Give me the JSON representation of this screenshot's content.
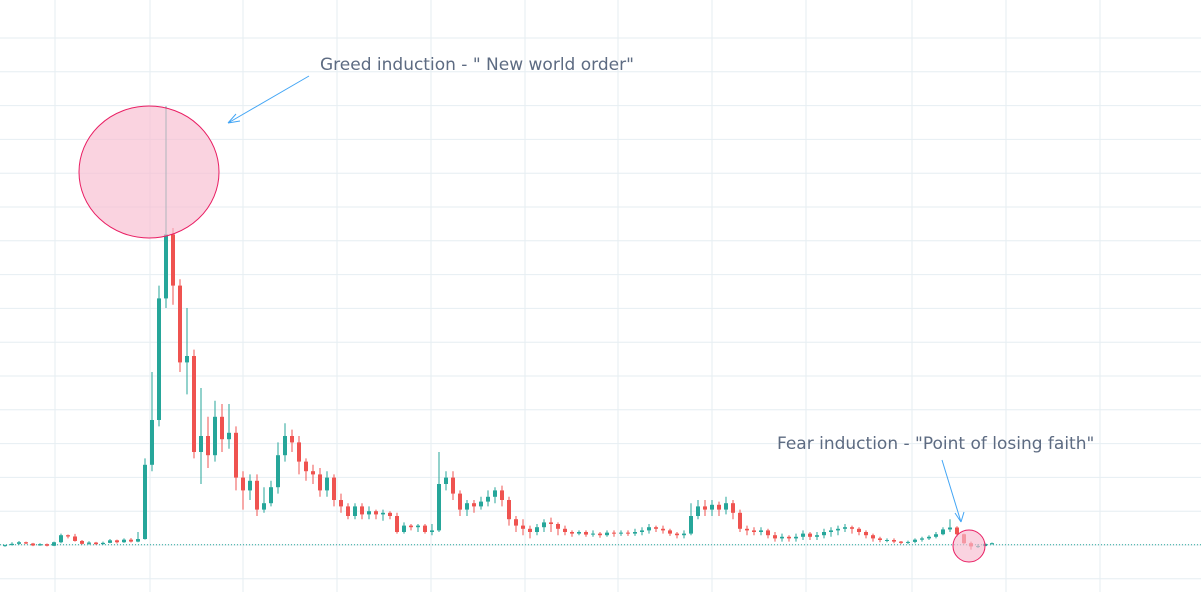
{
  "theme": {
    "up_color": "#26a69a",
    "down_color": "#ef5350",
    "grid_color": "#e6eef2",
    "baseline_color": "#26a69a",
    "annotation_fill": "#f8bbd0",
    "annotation_stroke": "#e91e63",
    "arrow_color": "#42a5f5",
    "text_color": "#5d6b82"
  },
  "annotations": {
    "greed": "Greed induction - \" New world order\"",
    "fear": "Fear induction - \"Point of losing faith\""
  },
  "chart_data": {
    "type": "candlestick",
    "title": "",
    "xlabel": "",
    "ylabel": "",
    "grid": true,
    "ylim": [
      0,
      100
    ],
    "baseline": 1.0,
    "candles": [
      [
        0.6,
        0.9,
        0.4,
        1.0
      ],
      [
        0.9,
        1.3,
        0.8,
        1.8
      ],
      [
        1.3,
        1.8,
        1.0,
        2.2
      ],
      [
        1.8,
        1.4,
        1.2,
        2.0
      ],
      [
        1.4,
        0.8,
        0.6,
        1.6
      ],
      [
        0.8,
        1.2,
        0.7,
        1.5
      ],
      [
        1.2,
        0.7,
        0.5,
        1.4
      ],
      [
        0.7,
        1.8,
        0.6,
        2.0
      ],
      [
        1.8,
        4.0,
        1.5,
        4.5
      ],
      [
        4.0,
        3.6,
        3.0,
        4.2
      ],
      [
        3.6,
        2.2,
        2.0,
        4.4
      ],
      [
        2.2,
        1.3,
        1.1,
        2.5
      ],
      [
        1.3,
        1.7,
        1.0,
        2.1
      ],
      [
        1.7,
        1.2,
        1.0,
        1.9
      ],
      [
        1.2,
        1.6,
        1.1,
        2.0
      ],
      [
        1.6,
        2.4,
        1.5,
        2.8
      ],
      [
        2.4,
        1.8,
        1.4,
        2.6
      ],
      [
        1.8,
        2.6,
        1.6,
        3.0
      ],
      [
        2.6,
        2.0,
        1.7,
        3.1
      ],
      [
        2.0,
        2.8,
        1.8,
        5.0
      ],
      [
        2.8,
        26.0,
        2.6,
        28.0
      ],
      [
        26.0,
        40.0,
        24.0,
        55.0
      ],
      [
        40.0,
        78.0,
        38.0,
        82.0
      ],
      [
        78.0,
        98.0,
        75.0,
        138.0
      ],
      [
        98.0,
        82.0,
        76.0,
        100.0
      ],
      [
        82.0,
        58.0,
        55.0,
        84.0
      ],
      [
        58.0,
        60.0,
        48.0,
        75.0
      ],
      [
        60.0,
        30.0,
        28.0,
        62.0
      ],
      [
        30.0,
        35.0,
        20.0,
        50.0
      ],
      [
        35.0,
        29.0,
        25.0,
        41.0
      ],
      [
        29.0,
        41.0,
        27.0,
        46.0
      ],
      [
        41.0,
        34.0,
        30.0,
        45.0
      ],
      [
        34.0,
        36.0,
        31.0,
        45.0
      ],
      [
        36.0,
        22.0,
        18.0,
        38.0
      ],
      [
        22.0,
        18.0,
        12.0,
        24.0
      ],
      [
        18.0,
        21.0,
        15.0,
        23.0
      ],
      [
        21.0,
        12.0,
        10.0,
        23.0
      ],
      [
        12.0,
        14.0,
        11.0,
        19.0
      ],
      [
        14.0,
        19.0,
        13.0,
        21.0
      ],
      [
        19.0,
        29.0,
        17.0,
        33.0
      ],
      [
        29.0,
        35.0,
        27.0,
        39.0
      ],
      [
        35.0,
        33.0,
        30.0,
        37.0
      ],
      [
        33.0,
        27.0,
        23.0,
        35.0
      ],
      [
        27.0,
        24.0,
        21.0,
        28.0
      ],
      [
        24.0,
        23.0,
        20.0,
        26.0
      ],
      [
        23.0,
        18.0,
        16.0,
        25.0
      ],
      [
        18.0,
        22.0,
        16.0,
        24.0
      ],
      [
        22.0,
        15.0,
        13.0,
        23.0
      ],
      [
        15.0,
        13.0,
        11.0,
        17.0
      ],
      [
        13.0,
        10.0,
        9.0,
        14.0
      ],
      [
        10.0,
        13.0,
        9.0,
        14.0
      ],
      [
        13.0,
        10.5,
        9.0,
        14.0
      ],
      [
        10.5,
        11.5,
        9.0,
        13.0
      ],
      [
        11.5,
        10.5,
        9.0,
        12.0
      ],
      [
        10.5,
        11.0,
        8.5,
        12.0
      ],
      [
        11.0,
        10.0,
        9.0,
        11.5
      ],
      [
        10.0,
        5.0,
        4.5,
        11.0
      ],
      [
        5.0,
        7.0,
        4.5,
        8.0
      ],
      [
        7.0,
        6.5,
        5.5,
        7.5
      ],
      [
        6.5,
        7.0,
        5.0,
        7.5
      ],
      [
        7.0,
        5.0,
        4.5,
        7.5
      ],
      [
        5.0,
        5.5,
        4.0,
        7.5
      ],
      [
        5.5,
        20.0,
        5.0,
        30.0
      ],
      [
        20.0,
        22.0,
        18.0,
        24.0
      ],
      [
        22.0,
        17.0,
        15.0,
        24.0
      ],
      [
        17.0,
        12.0,
        10.0,
        18.0
      ],
      [
        12.0,
        14.0,
        10.0,
        15.0
      ],
      [
        14.0,
        13.0,
        11.0,
        15.0
      ],
      [
        13.0,
        14.5,
        12.0,
        16.0
      ],
      [
        14.5,
        16.0,
        13.0,
        18.0
      ],
      [
        16.0,
        18.0,
        14.0,
        19.0
      ],
      [
        18.0,
        15.0,
        13.0,
        19.5
      ],
      [
        15.0,
        9.0,
        7.0,
        16.0
      ],
      [
        9.0,
        7.0,
        5.0,
        10.0
      ],
      [
        7.0,
        6.0,
        4.0,
        9.0
      ],
      [
        6.0,
        5.0,
        3.0,
        7.0
      ],
      [
        5.0,
        6.5,
        4.0,
        7.5
      ],
      [
        6.5,
        8.0,
        5.0,
        9.0
      ],
      [
        8.0,
        7.5,
        5.0,
        9.5
      ],
      [
        7.5,
        6.0,
        4.0,
        8.0
      ],
      [
        6.0,
        5.0,
        4.0,
        7.0
      ],
      [
        5.0,
        4.5,
        3.5,
        5.5
      ],
      [
        4.5,
        5.0,
        4.0,
        5.5
      ],
      [
        5.0,
        4.2,
        3.5,
        5.5
      ],
      [
        4.2,
        4.5,
        3.5,
        5.5
      ],
      [
        4.5,
        4.0,
        3.2,
        5.0
      ],
      [
        4.0,
        4.8,
        3.5,
        5.5
      ],
      [
        4.8,
        4.5,
        3.5,
        5.5
      ],
      [
        4.5,
        4.8,
        3.8,
        5.5
      ],
      [
        4.8,
        4.5,
        3.8,
        5.5
      ],
      [
        4.5,
        5.0,
        3.8,
        6.0
      ],
      [
        5.0,
        5.5,
        4.0,
        6.5
      ],
      [
        5.5,
        6.5,
        4.5,
        7.5
      ],
      [
        6.5,
        6.0,
        5.0,
        7.0
      ],
      [
        6.0,
        5.5,
        4.5,
        7.0
      ],
      [
        5.5,
        4.5,
        3.8,
        6.0
      ],
      [
        4.5,
        4.0,
        3.0,
        5.0
      ],
      [
        4.0,
        4.5,
        3.0,
        5.5
      ],
      [
        4.5,
        10.0,
        4.0,
        14.0
      ],
      [
        10.0,
        13.0,
        9.0,
        15.0
      ],
      [
        13.0,
        12.0,
        10.0,
        15.0
      ],
      [
        12.0,
        13.5,
        10.0,
        15.0
      ],
      [
        13.5,
        12.0,
        10.0,
        14.5
      ],
      [
        12.0,
        14.0,
        10.5,
        16.0
      ],
      [
        14.0,
        11.0,
        9.0,
        15.0
      ],
      [
        11.0,
        6.0,
        5.0,
        12.0
      ],
      [
        6.0,
        5.5,
        4.0,
        7.0
      ],
      [
        5.5,
        5.0,
        4.0,
        6.5
      ],
      [
        5.0,
        5.5,
        4.0,
        6.5
      ],
      [
        5.5,
        4.0,
        3.0,
        6.0
      ],
      [
        4.0,
        3.0,
        2.0,
        5.0
      ],
      [
        3.0,
        3.5,
        2.0,
        4.5
      ],
      [
        3.5,
        3.0,
        2.0,
        4.0
      ],
      [
        3.0,
        3.5,
        2.0,
        4.5
      ],
      [
        3.5,
        4.5,
        2.5,
        5.5
      ],
      [
        4.5,
        3.5,
        2.5,
        5.0
      ],
      [
        3.5,
        4.0,
        2.5,
        5.0
      ],
      [
        4.0,
        5.0,
        3.0,
        6.0
      ],
      [
        5.0,
        5.5,
        3.5,
        6.5
      ],
      [
        5.5,
        6.0,
        4.0,
        7.0
      ],
      [
        6.0,
        6.5,
        5.0,
        7.5
      ],
      [
        6.5,
        6.0,
        4.5,
        7.0
      ],
      [
        6.0,
        5.0,
        4.0,
        6.5
      ],
      [
        5.0,
        4.0,
        3.0,
        5.5
      ],
      [
        4.0,
        3.0,
        2.0,
        4.5
      ],
      [
        3.0,
        2.5,
        1.8,
        3.5
      ],
      [
        2.5,
        2.5,
        1.8,
        3.0
      ],
      [
        2.5,
        2.0,
        1.5,
        3.0
      ],
      [
        2.0,
        1.6,
        1.2,
        2.2
      ],
      [
        1.6,
        1.9,
        1.2,
        2.3
      ],
      [
        1.9,
        2.6,
        1.5,
        3.0
      ],
      [
        2.6,
        3.0,
        2.0,
        3.5
      ],
      [
        3.0,
        3.5,
        2.5,
        4.0
      ],
      [
        3.5,
        4.3,
        3.0,
        5.0
      ],
      [
        4.3,
        5.8,
        4.0,
        6.5
      ],
      [
        5.8,
        6.4,
        5.0,
        9.0
      ],
      [
        6.4,
        4.3,
        3.5,
        6.8
      ],
      [
        4.3,
        1.5,
        1.2,
        4.5
      ],
      [
        1.5,
        0.5,
        -0.5,
        2.0
      ],
      [
        0.5,
        0.6,
        0.0,
        1.2
      ],
      [
        0.6,
        1.3,
        0.5,
        1.6
      ],
      [
        1.3,
        1.5,
        1.1,
        1.7
      ]
    ]
  }
}
